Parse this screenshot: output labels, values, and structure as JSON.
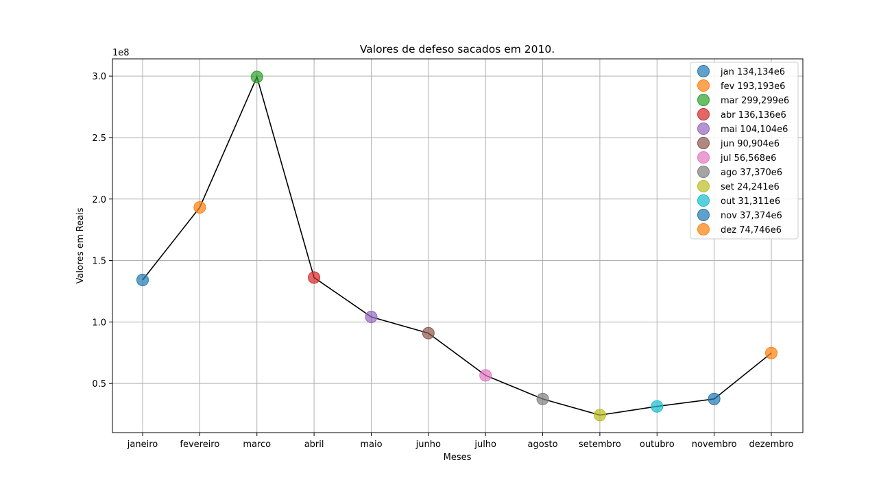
{
  "chart_data": {
    "type": "line",
    "title": "Valores de defeso sacados em 2010.",
    "xlabel": "Meses",
    "ylabel": "Valores em Reais",
    "y_offset_text": "1e8",
    "categories": [
      "janeiro",
      "fevereiro",
      "marco",
      "abril",
      "maio",
      "junho",
      "julho",
      "agosto",
      "setembro",
      "outubro",
      "novembro",
      "dezembro"
    ],
    "values": [
      134134000,
      193193000,
      299299000,
      136136000,
      104104000,
      90904000,
      56568000,
      37370000,
      24241000,
      31311000,
      37374000,
      74746000
    ],
    "ylim": [
      10000000,
      314000000
    ],
    "yticks": [
      50000000,
      100000000,
      150000000,
      200000000,
      250000000,
      300000000
    ],
    "ytick_labels": [
      "0.5",
      "1.0",
      "1.5",
      "2.0",
      "2.5",
      "3.0"
    ],
    "grid": true,
    "line_color": "#000000",
    "legend_placement": "upper right",
    "legend": [
      "jan 134,134e6",
      "fev 193,193e6",
      "mar 299,299e6",
      "abr 136,136e6",
      "mai 104,104e6",
      "jun 90,904e6",
      "jul 56,568e6",
      "ago 37,370e6",
      "set 24,241e6",
      "out 31,311e6",
      "nov 37,374e6",
      "dez 74,746e6"
    ],
    "marker_colors": [
      "#1f77b4",
      "#ff7f0e",
      "#2ca02c",
      "#d62728",
      "#9467bd",
      "#8c564b",
      "#e377c2",
      "#7f7f7f",
      "#bcbd22",
      "#17becf",
      "#1f77b4",
      "#ff7f0e"
    ]
  }
}
